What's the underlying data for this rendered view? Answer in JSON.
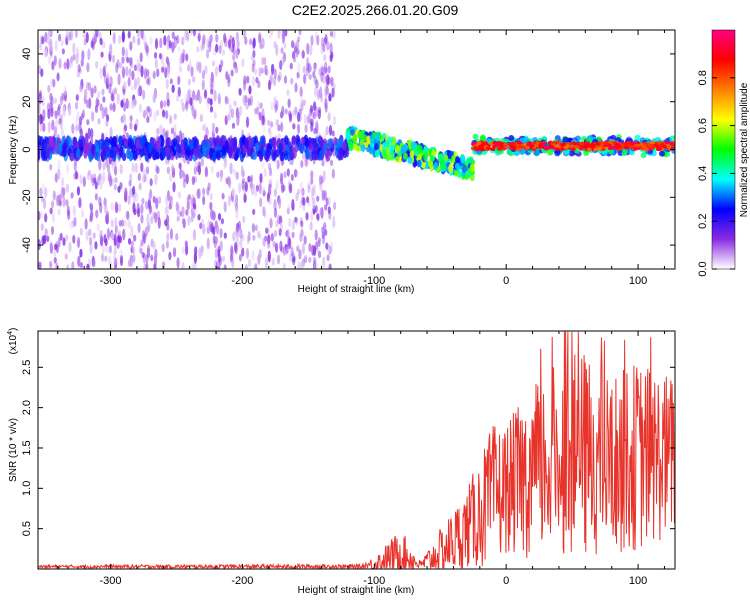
{
  "title": "C2E2.2025.266.01.20.G09",
  "chart_data": [
    {
      "type": "heatmap",
      "name": "spectrogram",
      "xlabel": "Height of straight line (km)",
      "ylabel": "Frequency (Hz)",
      "xlim": [
        -355,
        128
      ],
      "ylim": [
        -50,
        50
      ],
      "xticks": [
        -300,
        -200,
        -100,
        0,
        100
      ],
      "yticks": [
        -40,
        -20,
        0,
        20,
        40
      ],
      "grid": false,
      "colorbar": {
        "label": "Normalized spectral amplitude",
        "range": [
          0,
          1
        ],
        "ticks": [
          0.0,
          0.2,
          0.4,
          0.6,
          0.8
        ],
        "colors": [
          "#ffffff",
          "#8a2be2",
          "#0000ff",
          "#00ffff",
          "#00ff00",
          "#ffff00",
          "#ff7f00",
          "#ff0000",
          "#ff0080"
        ]
      },
      "description_regions": [
        {
          "x_range": [
            -355,
            -130
          ],
          "f_range": [
            -50,
            50
          ],
          "amplitude": 0.08
        },
        {
          "x_range": [
            -355,
            -120
          ],
          "f_range": [
            -3,
            4
          ],
          "amplitude": 0.2
        },
        {
          "x_range": [
            -120,
            -25
          ],
          "f_center_start": 5,
          "f_center_end": -8,
          "amplitude": 0.45
        },
        {
          "x_range": [
            -25,
            128
          ],
          "f_range": [
            0,
            3
          ],
          "amplitude": 0.9
        }
      ]
    },
    {
      "type": "line",
      "name": "snr",
      "xlabel": "Height of straight line (km)",
      "ylabel": "SNR (10 * v/v)",
      "yscale_label": "(x10",
      "yscale_exp": "4",
      "xlim": [
        -355,
        128
      ],
      "ylim": [
        0,
        2.95
      ],
      "xticks": [
        -300,
        -200,
        -100,
        0,
        100
      ],
      "yticks": [
        "0.5",
        "1.0",
        "1.5",
        "2.0",
        "2.5"
      ],
      "color": "#e8332b",
      "envelope": [
        {
          "x": -355,
          "base": 0.03,
          "amp": 0.02
        },
        {
          "x": -110,
          "base": 0.03,
          "amp": 0.03
        },
        {
          "x": -100,
          "base": 0.06,
          "amp": 0.1
        },
        {
          "x": -80,
          "base": 0.2,
          "amp": 0.3
        },
        {
          "x": -65,
          "base": 0.05,
          "amp": 0.05
        },
        {
          "x": -50,
          "base": 0.2,
          "amp": 0.3
        },
        {
          "x": -30,
          "base": 0.5,
          "amp": 0.5
        },
        {
          "x": -10,
          "base": 0.9,
          "amp": 0.9
        },
        {
          "x": 0,
          "base": 1.0,
          "amp": 0.8
        },
        {
          "x": 20,
          "base": 1.2,
          "amp": 1.1
        },
        {
          "x": 40,
          "base": 1.4,
          "amp": 1.2
        },
        {
          "x": 60,
          "base": 1.4,
          "amp": 1.3
        },
        {
          "x": 80,
          "base": 1.3,
          "amp": 1.1
        },
        {
          "x": 100,
          "base": 1.4,
          "amp": 1.2
        },
        {
          "x": 128,
          "base": 1.4,
          "amp": 1.0
        }
      ]
    }
  ]
}
